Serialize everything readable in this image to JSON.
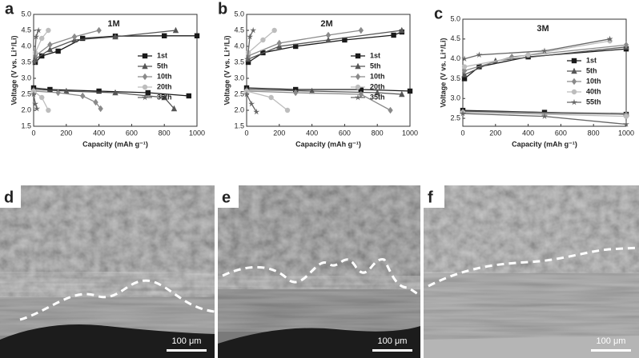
{
  "chart_data": [
    {
      "type": "line",
      "panel": "a",
      "annotation": "1M",
      "x_label": "Capacity (mAh g⁻¹)",
      "y_label": "Voltage (V vs. Li⁺/Li)",
      "xlim": [
        0,
        1000
      ],
      "xticks": [
        0,
        200,
        400,
        600,
        800,
        1000
      ],
      "ylim": [
        1.5,
        5.0
      ],
      "yticks": [
        1.5,
        {
          "value": 2,
          "label": "2.0"
        },
        2.5,
        {
          "value": 3,
          "label": "3.0"
        },
        3.5,
        {
          "value": 4,
          "label": "4.0"
        },
        4.5,
        {
          "value": 5,
          "label": "5.0"
        }
      ],
      "series": [
        {
          "name": "1st",
          "color": "#1a1a1a",
          "marker": "square",
          "x": [
            0,
            100,
            400,
            700,
            950,
            null,
            10,
            50,
            150,
            300,
            500,
            800,
            1000
          ],
          "values": [
            2.7,
            2.65,
            2.6,
            2.55,
            2.45,
            null,
            3.5,
            3.7,
            3.85,
            4.25,
            4.32,
            4.33,
            4.33
          ]
        },
        {
          "name": "5th",
          "color": "#555555",
          "marker": "triangle",
          "x": [
            0,
            200,
            500,
            800,
            860,
            null,
            10,
            100,
            250,
            500,
            870
          ],
          "values": [
            2.65,
            2.6,
            2.55,
            2.4,
            2.05,
            null,
            3.6,
            3.9,
            4.2,
            4.3,
            4.5
          ]
        },
        {
          "name": "10th",
          "color": "#8a8a8a",
          "marker": "diamond",
          "x": [
            0,
            150,
            300,
            380,
            410,
            null,
            10,
            100,
            250,
            400
          ],
          "values": [
            2.6,
            2.55,
            2.45,
            2.25,
            2.05,
            null,
            3.7,
            4.05,
            4.3,
            4.5
          ]
        },
        {
          "name": "20th",
          "color": "#bdbdbd",
          "marker": "circle",
          "x": [
            0,
            50,
            90,
            null,
            10,
            50,
            90
          ],
          "values": [
            2.6,
            2.4,
            2.0,
            null,
            3.8,
            4.25,
            4.5
          ]
        },
        {
          "name": "35th",
          "color": "#666666",
          "marker": "star",
          "x": [
            0,
            10,
            20,
            null,
            5,
            15,
            30
          ],
          "values": [
            2.5,
            2.2,
            2.05,
            null,
            3.5,
            4.3,
            4.5
          ]
        }
      ]
    },
    {
      "type": "line",
      "panel": "b",
      "annotation": "2M",
      "x_label": "Capacity (mAh g⁻¹)",
      "y_label": "Voltage (V vs. Li⁺/Li)",
      "xlim": [
        0,
        1000
      ],
      "xticks": [
        0,
        200,
        400,
        600,
        800,
        1000
      ],
      "ylim": [
        1.5,
        5.0
      ],
      "yticks": [
        1.5,
        {
          "value": 2,
          "label": "2.0"
        },
        2.5,
        {
          "value": 3,
          "label": "3.0"
        },
        3.5,
        {
          "value": 4,
          "label": "4.0"
        },
        4.5,
        {
          "value": 5,
          "label": "5.0"
        }
      ],
      "series": [
        {
          "name": "1st",
          "color": "#1a1a1a",
          "marker": "square",
          "x": [
            0,
            300,
            700,
            1000,
            null,
            10,
            100,
            300,
            600,
            900,
            950
          ],
          "values": [
            2.7,
            2.65,
            2.65,
            2.6,
            null,
            3.5,
            3.8,
            4.0,
            4.2,
            4.35,
            4.45
          ]
        },
        {
          "name": "5th",
          "color": "#555555",
          "marker": "triangle",
          "x": [
            0,
            400,
            800,
            950,
            null,
            10,
            200,
            500,
            950
          ],
          "values": [
            2.65,
            2.6,
            2.55,
            2.5,
            null,
            3.6,
            4.0,
            4.2,
            4.5
          ]
        },
        {
          "name": "10th",
          "color": "#8a8a8a",
          "marker": "diamond",
          "x": [
            0,
            300,
            700,
            880,
            null,
            10,
            200,
            500,
            700
          ],
          "values": [
            2.6,
            2.55,
            2.5,
            2.0,
            null,
            3.7,
            4.1,
            4.35,
            4.5
          ]
        },
        {
          "name": "20th",
          "color": "#bdbdbd",
          "marker": "circle",
          "x": [
            0,
            150,
            250,
            null,
            10,
            100,
            170
          ],
          "values": [
            2.6,
            2.4,
            2.0,
            null,
            3.8,
            4.2,
            4.5
          ]
        },
        {
          "name": "35th",
          "color": "#666666",
          "marker": "star",
          "x": [
            0,
            30,
            60,
            null,
            5,
            20,
            40
          ],
          "values": [
            2.5,
            2.2,
            1.95,
            null,
            3.6,
            4.3,
            4.5
          ]
        }
      ]
    },
    {
      "type": "line",
      "panel": "c",
      "annotation": "3M",
      "x_label": "Capacity (mAh g⁻¹)",
      "y_label": "Voltage (V vs. Li⁺/Li)",
      "xlim": [
        0,
        1000
      ],
      "xticks": [
        0,
        200,
        400,
        600,
        800,
        1000
      ],
      "ylim": [
        2.3,
        5.0
      ],
      "yticks": [
        2.5,
        {
          "value": 3,
          "label": "3.0"
        },
        3.5,
        {
          "value": 4,
          "label": "4.0"
        },
        4.5,
        {
          "value": 5,
          "label": "5.0"
        }
      ],
      "series": [
        {
          "name": "1st",
          "color": "#1a1a1a",
          "marker": "square",
          "x": [
            0,
            500,
            1000,
            null,
            10,
            100,
            400,
            1000
          ],
          "values": [
            2.7,
            2.65,
            2.6,
            null,
            3.5,
            3.8,
            4.05,
            4.25
          ]
        },
        {
          "name": "5th",
          "color": "#555555",
          "marker": "triangle",
          "x": [
            0,
            1000,
            null,
            10,
            200,
            1000
          ],
          "values": [
            2.68,
            2.62,
            null,
            3.6,
            3.95,
            4.3
          ]
        },
        {
          "name": "10th",
          "color": "#8a8a8a",
          "marker": "diamond",
          "x": [
            0,
            1000,
            null,
            10,
            300,
            1000
          ],
          "values": [
            2.65,
            2.6,
            null,
            3.7,
            4.05,
            4.35
          ]
        },
        {
          "name": "40th",
          "color": "#bdbdbd",
          "marker": "circle",
          "x": [
            0,
            1000,
            null,
            10,
            400,
            900
          ],
          "values": [
            2.65,
            2.55,
            null,
            3.8,
            4.1,
            4.45
          ]
        },
        {
          "name": "55th",
          "color": "#666666",
          "marker": "star",
          "x": [
            0,
            500,
            1000,
            null,
            10,
            100,
            500,
            900
          ],
          "values": [
            2.62,
            2.55,
            2.35,
            null,
            4.0,
            4.1,
            4.2,
            4.5
          ]
        }
      ]
    }
  ],
  "images": [
    {
      "label": "d",
      "scale_bar": "100 μm"
    },
    {
      "label": "e",
      "scale_bar": "100 μm"
    },
    {
      "label": "f",
      "scale_bar": "100 μm"
    }
  ]
}
